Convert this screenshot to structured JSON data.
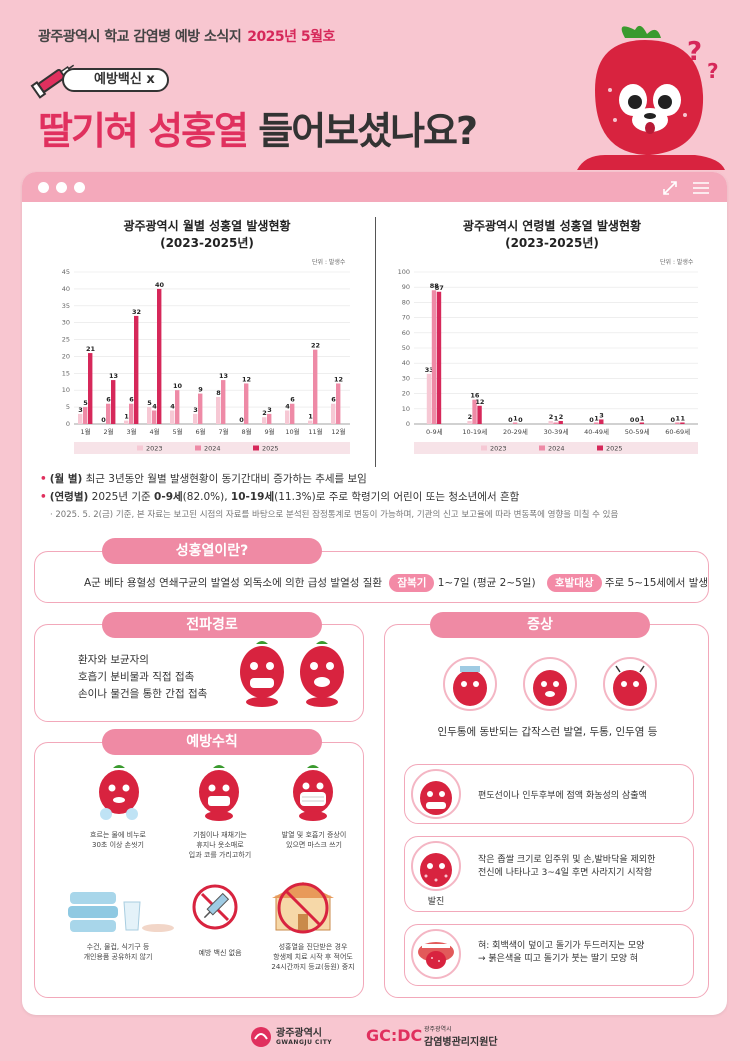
{
  "header": {
    "subtitle": "광주광역시 학교 감염병 예방 소식지",
    "issue": "2025년 5월호",
    "tag": "예방백신 x",
    "title_red1": "딸기혀",
    "title_red2": "성홍열",
    "title_rest": "들어보셨나요?"
  },
  "charts": {
    "monthly": {
      "title_line1": "광주광역시 월별 성홍열 발생현황",
      "title_line2": "(2023-2025년)",
      "unit": "단위 : 발생수"
    },
    "age": {
      "title_line1": "광주광역시 연령별 성홍열 발생현황",
      "title_line2": "(2023-2025년)",
      "unit": "단위 : 발생수"
    }
  },
  "chart_data": [
    {
      "type": "bar",
      "title": "광주광역시 월별 성홍열 발생현황 (2023-2025년)",
      "ylabel": "단위 : 발생수",
      "ylim": [
        0,
        45
      ],
      "yticks": [
        0,
        5,
        10,
        15,
        20,
        25,
        30,
        35,
        40,
        45
      ],
      "categories": [
        "1월",
        "2월",
        "3월",
        "4월",
        "5월",
        "6월",
        "7월",
        "8월",
        "9월",
        "10월",
        "11월",
        "12월"
      ],
      "series": [
        {
          "name": "2023",
          "color": "#f6c8d4",
          "values": [
            3,
            0,
            1,
            5,
            4,
            3,
            8,
            0,
            2,
            4,
            1,
            6
          ]
        },
        {
          "name": "2024",
          "color": "#ee8aa6",
          "values": [
            5,
            6,
            6,
            4,
            10,
            9,
            13,
            12,
            3,
            6,
            22,
            12
          ]
        },
        {
          "name": "2025",
          "color": "#d6285a",
          "values": [
            21,
            13,
            32,
            40,
            null,
            null,
            null,
            null,
            null,
            null,
            null,
            null
          ]
        }
      ],
      "legend": "bottom"
    },
    {
      "type": "bar",
      "title": "광주광역시 연령별 성홍열 발생현황 (2023-2025년)",
      "ylabel": "단위 : 발생수",
      "ylim": [
        0,
        100
      ],
      "yticks": [
        0,
        10,
        20,
        30,
        40,
        50,
        60,
        70,
        80,
        90,
        100
      ],
      "categories": [
        "0-9세",
        "10-19세",
        "20-29세",
        "30-39세",
        "40-49세",
        "50-59세",
        "60-69세"
      ],
      "series": [
        {
          "name": "2023",
          "color": "#f6c8d4",
          "values": [
            33,
            2,
            0,
            2,
            0,
            0,
            0
          ]
        },
        {
          "name": "2024",
          "color": "#ee8aa6",
          "values": [
            88,
            16,
            1,
            1,
            1,
            0,
            1
          ]
        },
        {
          "name": "2025",
          "color": "#d6285a",
          "values": [
            87,
            12,
            0,
            2,
            3,
            1,
            1
          ]
        }
      ],
      "legend": "bottom"
    }
  ],
  "bullets": {
    "b1_key": "(월    별)",
    "b1_text": "최근 3년동안 월별 발생현황이 동기간대비 증가하는 추세를 보임",
    "b2_key": "(연령별)",
    "b2_a": "2025년 기준",
    "b2_b": "0-9세",
    "b2_c": "(82.0%),",
    "b2_d": "10-19세",
    "b2_e": "(11.3%)로 주로 학령기의 어린이 또는 청소년에서 흔함",
    "note": "· 2025. 5. 2(금) 기준, 본 자료는 보고된 시점의 자료를 바탕으로 분석된 잠정통계로 변동이 가능하며, 기관의 신고 보고율에 따라 변동폭에 영향을 미칠 수 있음"
  },
  "what": {
    "pill": "성홍열이란?",
    "desc": "A군 베타 용혈성 연쇄구균의 발열성 외독소에 의한 급성 발열성 질환",
    "incubation_label": "잠복기",
    "incubation_value": "1~7일 (평균 2~5일)",
    "target_label": "호발대상",
    "target_value": "주로 5~15세에서 발생"
  },
  "route": {
    "pill": "전파경로",
    "line1": "환자와 보균자의",
    "line2": "호흡기 분비물과 직접 접촉",
    "line3": "손이나 물건을 통한 간접 접촉"
  },
  "prevention": {
    "pill": "예방수칙",
    "items": [
      {
        "l1": "흐르는 물에 비누로",
        "l2": "30초 이상 손씻기",
        "l3": ""
      },
      {
        "l1": "기침이나 재채기는",
        "l2": "휴지나 옷소매로",
        "l3": "입과 코를 가리고하기"
      },
      {
        "l1": "발열 및 호흡기 증상이",
        "l2": "있으면 마스크 쓰기",
        "l3": ""
      },
      {
        "l1": "수건, 물컵, 식기구 등",
        "l2": "개인용품 공유하지 않기",
        "l3": ""
      },
      {
        "l1": "예방 백신 없음",
        "l2": "",
        "l3": ""
      },
      {
        "l1": "성홍열을 진단받은 경우",
        "l2": "항생제 치료 시작 후 적어도",
        "l3": "24시간까지 등교(등원) 중지"
      }
    ]
  },
  "symptoms": {
    "pill": "증상",
    "s1": "인두통에 동반되는 갑작스런 발열, 두통, 인두염 등",
    "s2": "편도선이나 인두후부에 점액 화농성의 삼출액",
    "s3a": "작은 좁쌀 크기로 입주위 및 손,발바닥을 제외한",
    "s3b": "전신에 나타나고 3~4일 후면 사라지기 시작함",
    "s3_label": "발진",
    "s4a": "혀: 회백색이 덮이고 돌기가 두드러지는 모양",
    "s4b": "→ 붉은색을 띠고 돌기가 붓는 딸기 모양 혀"
  },
  "footer": {
    "city": "광주광역시",
    "city_en": "GWANGJU CITY",
    "gcdc_logo": "GC:DC",
    "gcdc_small": "광주광역시",
    "gcdc_name": "감염병관리지원단"
  }
}
